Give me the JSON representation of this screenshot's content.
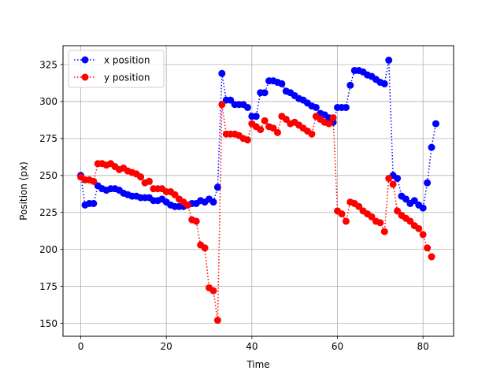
{
  "chart_data": {
    "type": "line",
    "xlabel": "Time",
    "ylabel": "Position (px)",
    "xlim": [
      -4.15,
      87.15
    ],
    "ylim": [
      141.2,
      337.8
    ],
    "x_ticks": [
      0,
      20,
      40,
      60,
      80
    ],
    "y_ticks": [
      150,
      175,
      200,
      225,
      250,
      275,
      300,
      325
    ],
    "grid": true,
    "legend_position": "top-left",
    "series": [
      {
        "name": "x position",
        "color": "#0000ff",
        "line_style": "dotted",
        "marker": "circle",
        "values": [
          250,
          230,
          231,
          231,
          243,
          241,
          240,
          241,
          241,
          240,
          238,
          237,
          236,
          236,
          235,
          235,
          235,
          233,
          233,
          234,
          232,
          230,
          229,
          229,
          229,
          230,
          231,
          231,
          233,
          232,
          234,
          232,
          242,
          319,
          301,
          301,
          298,
          298,
          298,
          296,
          290,
          290,
          306,
          306,
          314,
          314,
          313,
          312,
          307,
          306,
          304,
          302,
          301,
          299,
          297,
          296,
          292,
          291,
          289,
          286,
          296,
          296,
          296,
          311,
          321,
          321,
          320,
          318,
          317,
          315,
          313,
          312,
          328,
          250,
          248,
          236,
          234,
          231,
          233,
          230,
          228,
          245,
          269,
          285
        ]
      },
      {
        "name": "y position",
        "color": "#ff0000",
        "line_style": "dotted",
        "marker": "circle",
        "values": [
          249,
          247,
          247,
          246,
          258,
          258,
          257,
          258,
          256,
          254,
          255,
          253,
          252,
          251,
          249,
          245,
          246,
          241,
          241,
          241,
          239,
          239,
          237,
          234,
          232,
          230,
          220,
          219,
          203,
          201,
          174,
          172,
          152,
          298,
          278,
          278,
          278,
          277,
          275,
          274,
          285,
          283,
          281,
          287,
          283,
          282,
          279,
          290,
          288,
          285,
          286,
          284,
          282,
          280,
          278,
          290,
          288,
          286,
          285,
          289,
          226,
          224,
          219,
          232,
          231,
          229,
          226,
          224,
          222,
          219,
          218,
          212,
          248,
          244,
          226,
          223,
          221,
          219,
          216,
          214,
          210,
          201,
          195
        ]
      }
    ]
  }
}
